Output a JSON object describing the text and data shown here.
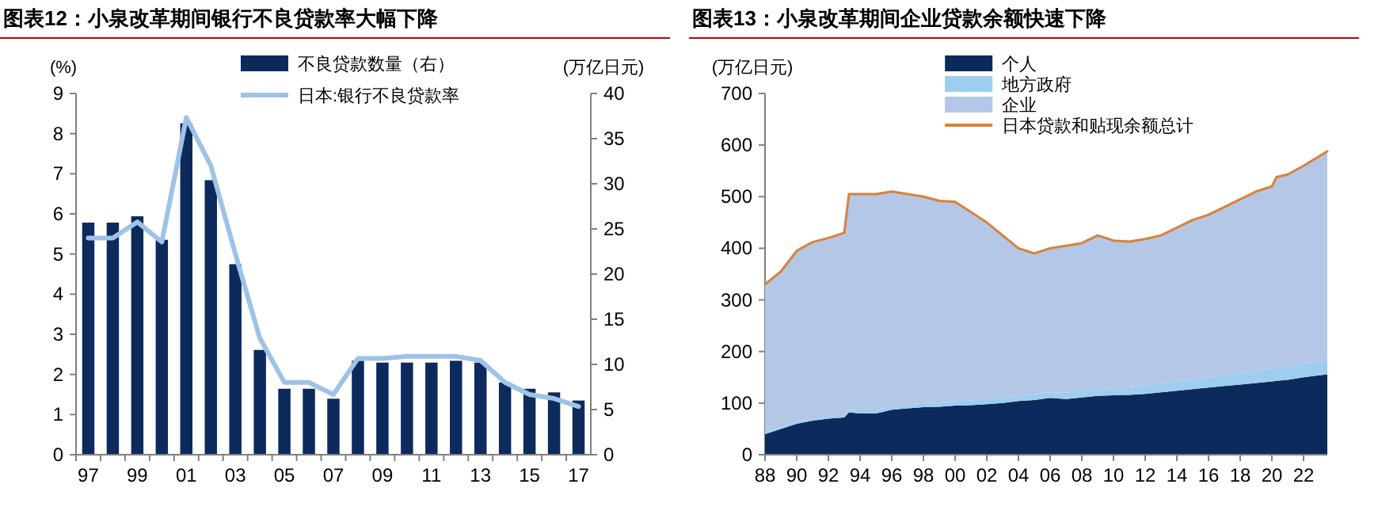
{
  "chart_data": [
    {
      "type": "bar",
      "title": "图表12：小泉改革期间银行不良贷款率大幅下降",
      "ylabel": "(%)",
      "y2label": "(万亿日元)",
      "legend": "top",
      "categories": [
        "97",
        null,
        "99",
        null,
        "01",
        null,
        "03",
        null,
        "05",
        null,
        "07",
        null,
        "09",
        null,
        "11",
        null,
        "13",
        null,
        "15",
        null,
        "17"
      ],
      "series": [
        {
          "name": "不良贷款数量（右）",
          "axis": "y2",
          "color": "#0d2a5c",
          "values": [
            25.7,
            25.7,
            26.4,
            23.8,
            36.7,
            30.4,
            21.1,
            11.6,
            7.3,
            7.3,
            6.2,
            10.4,
            10.2,
            10.2,
            10.2,
            10.4,
            10.2,
            8.0,
            7.3,
            6.9,
            6.0
          ]
        },
        {
          "name": "日本:银行不良贷款率",
          "type": "line",
          "color": "#9dc3e6",
          "values": [
            5.4,
            5.4,
            5.8,
            5.3,
            8.4,
            7.2,
            5.0,
            2.9,
            1.8,
            1.8,
            1.5,
            2.4,
            2.4,
            2.45,
            2.45,
            2.45,
            2.35,
            1.8,
            1.5,
            1.4,
            1.2
          ]
        }
      ],
      "ylim": [
        0,
        9
      ],
      "yticks": [
        0,
        1,
        2,
        3,
        4,
        5,
        6,
        7,
        8,
        9
      ],
      "y2lim": [
        0,
        40
      ],
      "y2ticks": [
        0,
        5,
        10,
        15,
        20,
        25,
        30,
        35,
        40
      ]
    },
    {
      "type": "area",
      "stacked": true,
      "title": "图表13：小泉改革期间企业贷款余额快速下降",
      "ylabel": "(万亿日元)",
      "legend": "top",
      "x": [
        1988,
        1989,
        1990,
        1991,
        1992,
        1993,
        1993.3,
        1994,
        1995,
        1996,
        1997,
        1998,
        1999,
        2000,
        2001,
        2002,
        2003,
        2004,
        2005,
        2006,
        2007,
        2008,
        2009,
        2010,
        2011,
        2012,
        2013,
        2014,
        2015,
        2016,
        2017,
        2018,
        2019,
        2020,
        2020.3,
        2021,
        2022,
        2023.5
      ],
      "series": [
        {
          "name": "个人",
          "color": "#0d2a5c",
          "values": [
            40,
            50,
            60,
            66,
            70,
            72,
            82,
            80,
            80,
            87,
            90,
            92,
            93,
            95,
            96,
            98,
            100,
            104,
            106,
            110,
            108,
            111,
            114,
            115,
            116,
            118,
            121,
            124,
            127,
            130,
            133,
            136,
            139,
            142,
            143,
            145,
            150,
            156
          ]
        },
        {
          "name": "地方政府",
          "color": "#9fcdf0",
          "values": [
            3,
            3,
            4,
            4,
            4,
            5,
            5,
            6,
            6,
            7,
            7,
            8,
            8,
            9,
            9,
            10,
            10,
            10,
            11,
            11,
            12,
            13,
            13,
            14,
            15,
            16,
            17,
            18,
            19,
            20,
            21,
            22,
            24,
            25,
            25,
            26,
            27,
            28
          ]
        },
        {
          "name": "企业",
          "color": "#b4c7e7",
          "values": [
            287,
            302,
            331,
            342,
            346,
            353,
            418,
            419,
            419,
            416,
            408,
            400,
            391,
            386,
            365,
            342,
            315,
            286,
            273,
            279,
            285,
            286,
            298,
            286,
            282,
            284,
            287,
            298,
            309,
            315,
            326,
            337,
            347,
            353,
            370,
            372,
            383,
            404
          ]
        },
        {
          "name": "日本贷款和贴现余额总计",
          "type": "line",
          "color": "#d9813a",
          "values": [
            330,
            355,
            395,
            412,
            420,
            430,
            505,
            505,
            505,
            510,
            505,
            500,
            492,
            490,
            470,
            450,
            425,
            400,
            390,
            400,
            405,
            410,
            425,
            415,
            413,
            418,
            425,
            440,
            455,
            465,
            480,
            495,
            510,
            520,
            538,
            543,
            560,
            588
          ]
        }
      ],
      "xlim": [
        1988,
        2023.5
      ],
      "xticks": [
        {
          "value": 1988,
          "label": "88"
        },
        {
          "value": 1990,
          "label": "90"
        },
        {
          "value": 1992,
          "label": "92"
        },
        {
          "value": 1994,
          "label": "94"
        },
        {
          "value": 1996,
          "label": "96"
        },
        {
          "value": 1998,
          "label": "98"
        },
        {
          "value": 2000,
          "label": "00"
        },
        {
          "value": 2002,
          "label": "02"
        },
        {
          "value": 2004,
          "label": "04"
        },
        {
          "value": 2006,
          "label": "06"
        },
        {
          "value": 2008,
          "label": "08"
        },
        {
          "value": 2010,
          "label": "10"
        },
        {
          "value": 2012,
          "label": "12"
        },
        {
          "value": 2014,
          "label": "14"
        },
        {
          "value": 2016,
          "label": "16"
        },
        {
          "value": 2018,
          "label": "18"
        },
        {
          "value": 2020,
          "label": "20"
        },
        {
          "value": 2022,
          "label": "22"
        }
      ],
      "ylim": [
        0,
        700
      ],
      "yticks": [
        0,
        100,
        200,
        300,
        400,
        500,
        600,
        700
      ]
    }
  ]
}
